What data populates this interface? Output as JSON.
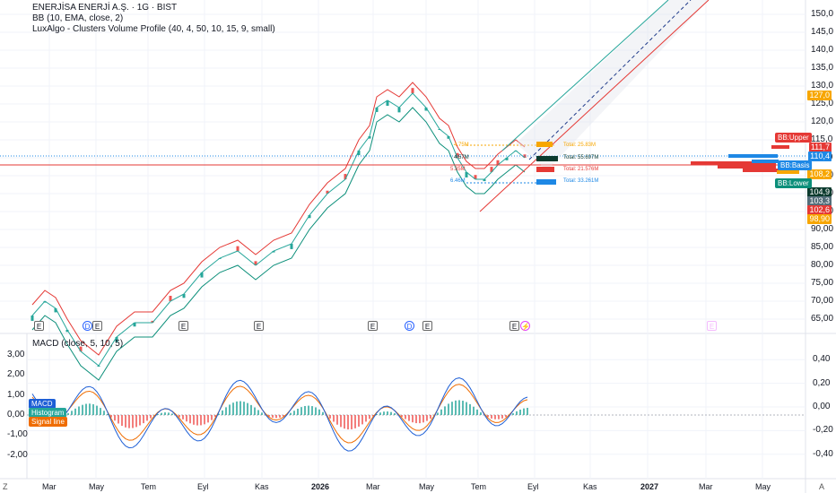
{
  "legend": {
    "title": "ENERJİSA ENERJİ A.Ş. · 1G · BIST",
    "bb": "BB (10, EMA, close, 2)",
    "lux": "LuxAlgo - Clusters Volume Profile (40, 4, 50, 10, 15, 9, small)",
    "macd": "MACD (close, 5, 10, 5)"
  },
  "price_axis": [
    "150,0",
    "145,0",
    "140,0",
    "135,0",
    "130,0",
    "125,0",
    "120,0",
    "115,0",
    "110,0",
    "105,0",
    "100,0",
    "95,00",
    "90,00",
    "85,00",
    "80,00",
    "75,00",
    "70,00",
    "65,00"
  ],
  "macd_left_axis": [
    "3,00",
    "2,00",
    "1,00",
    "0,00",
    "-1,00",
    "-2,00"
  ],
  "macd_right_axis": [
    "0,40",
    "0,20",
    "0,00",
    "-0,20",
    "-0,40"
  ],
  "time_axis": [
    "Mar",
    "May",
    "Tem",
    "Eyl",
    "Kas",
    "2026",
    "Mar",
    "May",
    "Tem",
    "Eyl",
    "Kas",
    "2027",
    "Mar",
    "May"
  ],
  "price_tags": [
    {
      "label": "127,0",
      "color": "#f7a600"
    },
    {
      "label": "111,7",
      "color": "#e53935"
    },
    {
      "label": "110,4",
      "color": "#1e88e5"
    },
    {
      "label": "108,2",
      "color": "#f7a600"
    },
    {
      "label": "104,9",
      "color": "#0c3b2e"
    },
    {
      "label": "103,3",
      "color": "#546e7a"
    },
    {
      "label": "102,6",
      "color": "#e53935"
    },
    {
      "label": "98,90",
      "color": "#f7a600"
    }
  ],
  "bb_badges": {
    "upper": "BB:Upper",
    "basis": "BB:Basis",
    "lower": "BB:Lower",
    "upper_color": "#e53935",
    "basis_color": "#1e88e5",
    "lower_color": "#0c8f7a"
  },
  "macd_badges": {
    "macd": "MACD",
    "histogram": "Histogram",
    "signal": "Signal line",
    "macd_color": "#1e5fd6",
    "histogram_color": "#26a69a",
    "signal_color": "#ef6c00"
  },
  "volume_profile": {
    "levels": [
      "4.75M",
      "4.57M",
      "5.35M",
      "6.46M"
    ],
    "totals": [
      "Total: 25.83M",
      "Total: 55.697M",
      "Total: 21.576M",
      "Total: 33.261M"
    ]
  },
  "events": [
    "E",
    "D",
    "E",
    "E",
    "E",
    "D",
    "E",
    "E",
    "⚡",
    "E"
  ],
  "corner": {
    "left": "Z",
    "right": "A"
  }
}
